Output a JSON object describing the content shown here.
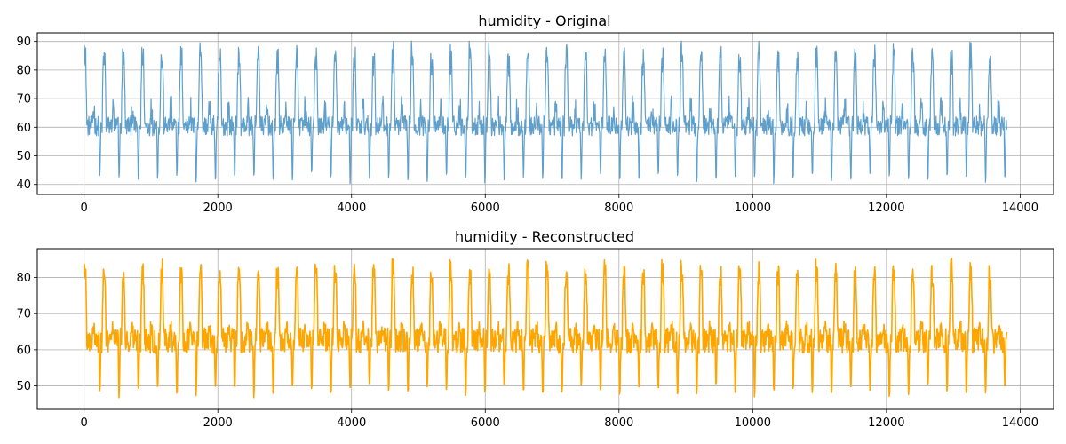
{
  "chart_data": [
    {
      "type": "line",
      "title": "humidity - Original",
      "xlabel": "",
      "ylabel": "",
      "xlim": [
        -700,
        14500
      ],
      "ylim": [
        36.5,
        93
      ],
      "xticks": [
        0,
        2000,
        4000,
        6000,
        8000,
        10000,
        12000,
        14000
      ],
      "xtick_labels": [
        "0",
        "2000",
        "4000",
        "6000",
        "8000",
        "10000",
        "12000",
        "14000"
      ],
      "yticks": [
        40,
        50,
        60,
        70,
        80,
        90
      ],
      "ytick_labels": [
        "40",
        "50",
        "60",
        "70",
        "80",
        "90"
      ],
      "grid": true,
      "color": "#5f9fcb",
      "series": [
        {
          "n_points": 13800,
          "period": 288,
          "approx_max": 90.5,
          "approx_min": 39.5,
          "approx_plateau": [
            57,
            64
          ],
          "approx_secondary": [
            60,
            71
          ]
        }
      ]
    },
    {
      "type": "line",
      "title": "humidity - Reconstructed",
      "xlabel": "",
      "ylabel": "",
      "xlim": [
        -700,
        14500
      ],
      "ylim": [
        43.5,
        88
      ],
      "xticks": [
        0,
        2000,
        4000,
        6000,
        8000,
        10000,
        12000,
        14000
      ],
      "xtick_labels": [
        "0",
        "2000",
        "4000",
        "6000",
        "8000",
        "10000",
        "12000",
        "14000"
      ],
      "yticks": [
        50,
        60,
        70,
        80
      ],
      "ytick_labels": [
        "50",
        "60",
        "70",
        "80"
      ],
      "grid": true,
      "color": "#ffa500",
      "series": [
        {
          "n_points": 13800,
          "period": 288,
          "approx_max": 85.5,
          "approx_min": 46,
          "approx_plateau": [
            59,
            66
          ],
          "approx_secondary": [
            64,
            68
          ]
        }
      ]
    }
  ]
}
